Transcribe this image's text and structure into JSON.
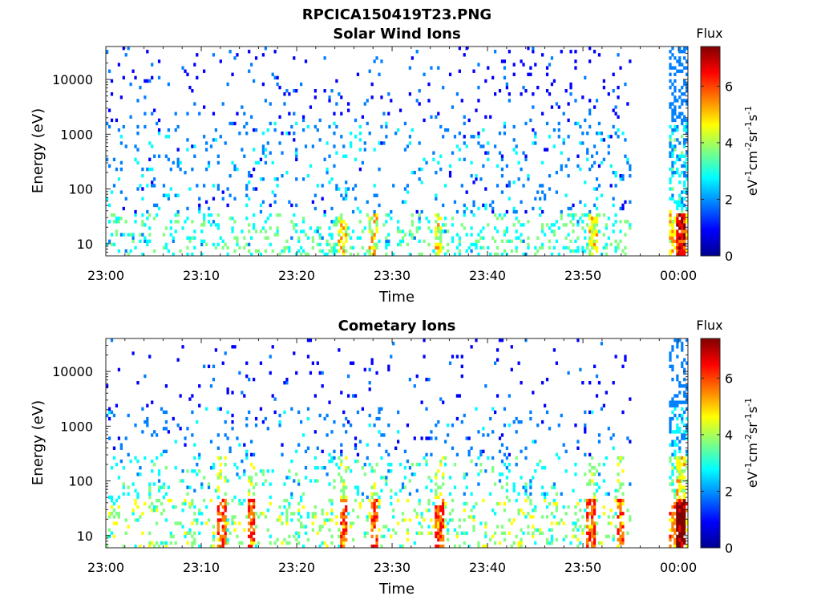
{
  "figure": {
    "file_title": "RPCICA150419T23.PNG"
  },
  "colormap": [
    "#00008f",
    "#0000ff",
    "#0080ff",
    "#00ffff",
    "#80ff80",
    "#ffff00",
    "#ff8000",
    "#ff0000",
    "#800000"
  ],
  "chart_data": [
    {
      "type": "heatmap",
      "title": "Solar Wind Ions",
      "xlabel": "Time",
      "ylabel": "Energy (eV)",
      "x_ticks": [
        "23:00",
        "23:10",
        "23:20",
        "23:30",
        "23:40",
        "23:50",
        "00:00"
      ],
      "x_range_min": [
        0,
        61
      ],
      "y_scale": "log",
      "y_ticks": [
        "10",
        "100",
        "1000",
        "10000"
      ],
      "y_range": [
        6,
        40000
      ],
      "colorbar": {
        "title": "Flux",
        "label": "eV-1cm-2sr-1s-1",
        "ticks": [
          "0",
          "2",
          "4",
          "6"
        ],
        "range": [
          0,
          7.4
        ]
      },
      "data_gap_min": [
        55,
        59
      ],
      "profile": {
        "0": [],
        "1": [],
        "2": []
      },
      "level_hint": "mostly 1-3 at high energy, 2-5 below 30 eV, peaks near 6 around 00:00"
    },
    {
      "type": "heatmap",
      "title": "Cometary Ions",
      "xlabel": "Time",
      "ylabel": "Energy (eV)",
      "x_ticks": [
        "23:00",
        "23:10",
        "23:20",
        "23:30",
        "23:40",
        "23:50",
        "00:00"
      ],
      "x_range_min": [
        0,
        61
      ],
      "y_scale": "log",
      "y_ticks": [
        "10",
        "100",
        "1000",
        "10000"
      ],
      "y_range": [
        6,
        40000
      ],
      "colorbar": {
        "title": "Flux",
        "label": "eV-1cm-2sr-1s-1",
        "ticks": [
          "0",
          "2",
          "4",
          "6"
        ],
        "range": [
          0,
          7.4
        ]
      },
      "data_gap_min": [
        55,
        59
      ],
      "level_hint": "mostly 1-3 above 200 eV, 3-7 below 40 eV with bright columns near 23:25, 23:28, 23:51, 00:00"
    }
  ]
}
